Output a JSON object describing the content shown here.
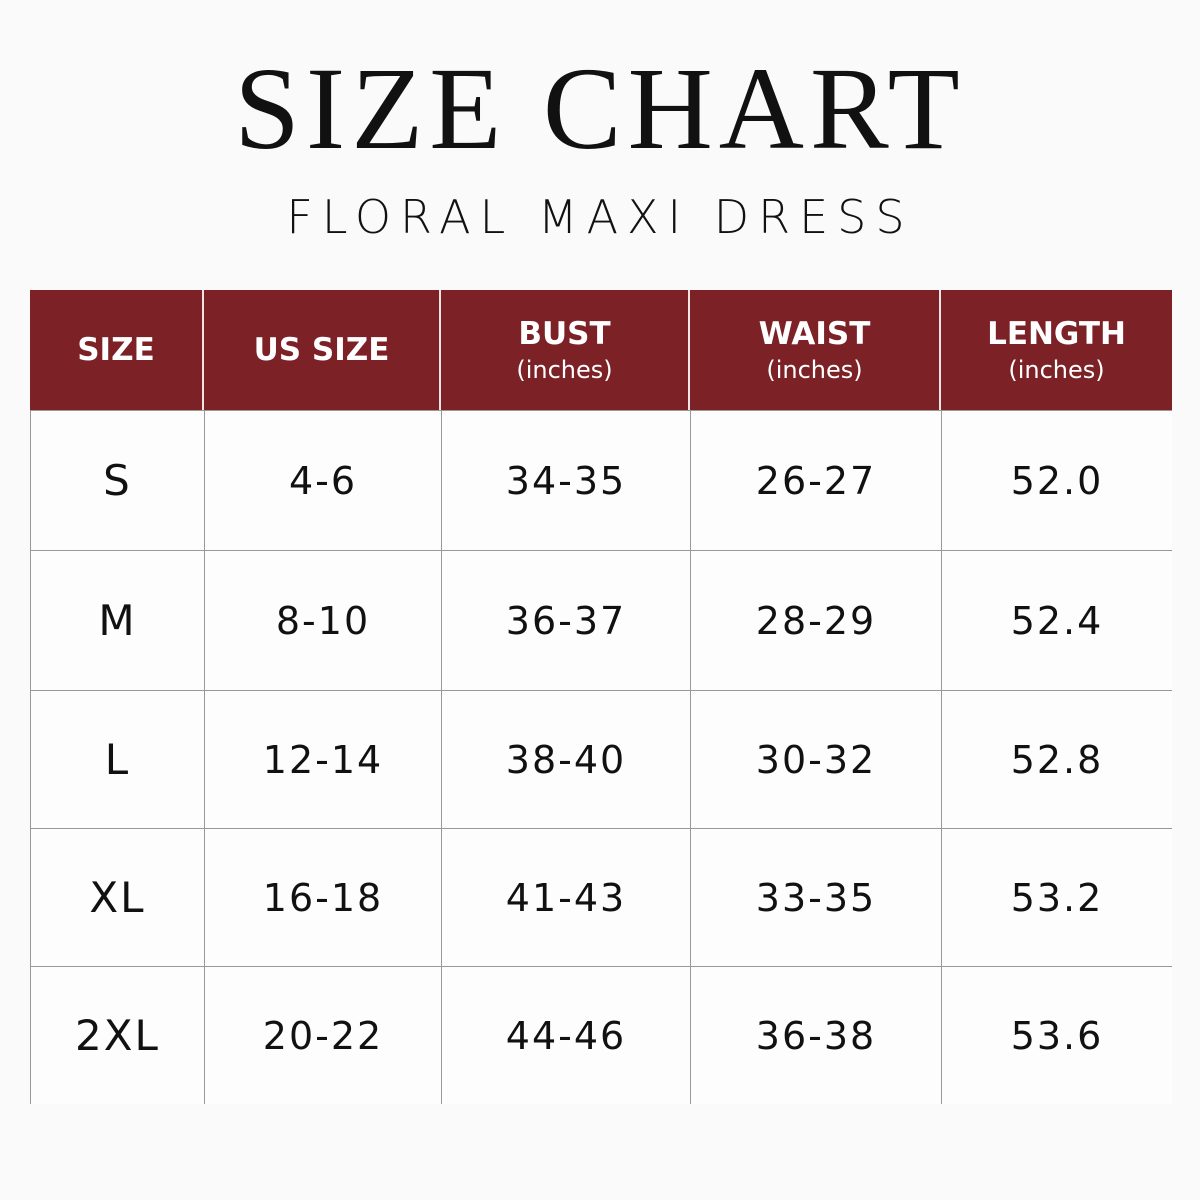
{
  "header": {
    "title": "SIZE CHART",
    "subtitle": "FLORAL MAXI DRESS"
  },
  "table": {
    "columns": [
      {
        "label": "SIZE"
      },
      {
        "label": "US SIZE"
      },
      {
        "label": "BUST",
        "unit": "(inches)"
      },
      {
        "label": "WAIST",
        "unit": "(inches)"
      },
      {
        "label": "LENGTH",
        "unit": "(inches)"
      }
    ],
    "rows": [
      [
        "S",
        "4-6",
        "34-35",
        "26-27",
        "52.0"
      ],
      [
        "M",
        "8-10",
        "36-37",
        "28-29",
        "52.4"
      ],
      [
        "L",
        "12-14",
        "38-40",
        "30-32",
        "52.8"
      ],
      [
        "XL",
        "16-18",
        "41-43",
        "33-35",
        "53.2"
      ],
      [
        "2XL",
        "20-22",
        "44-46",
        "36-38",
        "53.6"
      ]
    ]
  }
}
